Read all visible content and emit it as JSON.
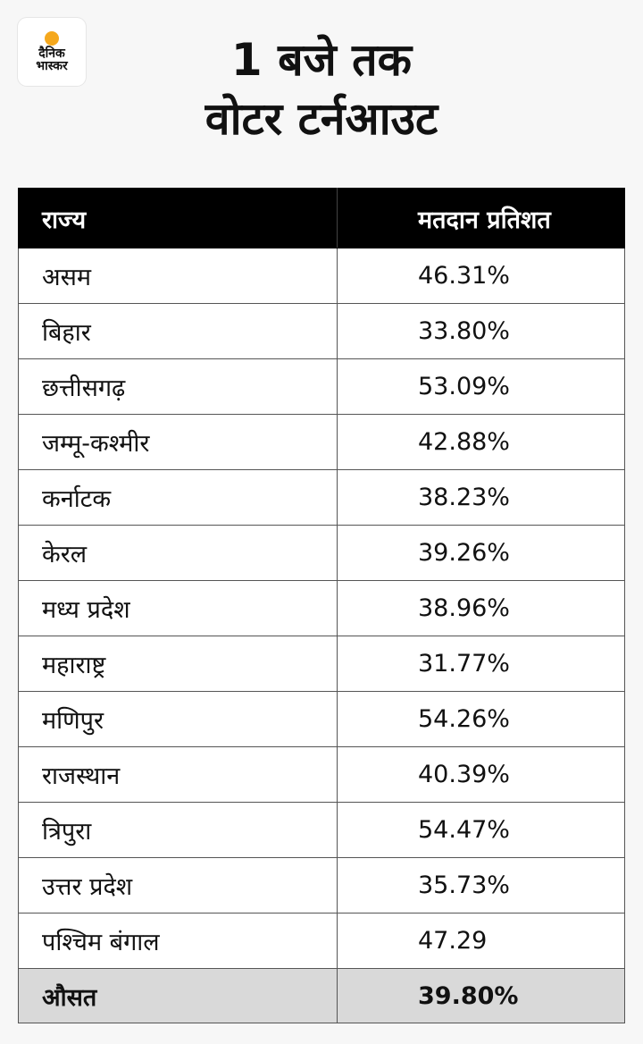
{
  "brand": {
    "line1": "दैनिक",
    "line2": "भास्कर",
    "dot_color": "#f5a81d"
  },
  "title": {
    "line1": "1 बजे तक",
    "line2": "वोटर टर्नआउट"
  },
  "table": {
    "headers": [
      "राज्य",
      "मतदान प्रतिशत"
    ],
    "rows": [
      {
        "state": "असम",
        "pct": "46.31%"
      },
      {
        "state": "बिहार",
        "pct": "33.80%"
      },
      {
        "state": "छत्तीसगढ़",
        "pct": "53.09%"
      },
      {
        "state": "जम्मू-कश्मीर",
        "pct": "42.88%"
      },
      {
        "state": "कर्नाटक",
        "pct": "38.23%"
      },
      {
        "state": "केरल",
        "pct": "39.26%"
      },
      {
        "state": "मध्य प्रदेश",
        "pct": "38.96%"
      },
      {
        "state": "महाराष्ट्र",
        "pct": "31.77%"
      },
      {
        "state": "मणिपुर",
        "pct": "54.26%"
      },
      {
        "state": "राजस्थान",
        "pct": "40.39%"
      },
      {
        "state": "त्रिपुरा",
        "pct": "54.47%"
      },
      {
        "state": "उत्तर प्रदेश",
        "pct": "35.73%"
      },
      {
        "state": "पश्चिम बंगाल",
        "pct": "47.29"
      }
    ],
    "average": {
      "label": "औसत",
      "pct": "39.80%"
    }
  },
  "colors": {
    "header_bg": "#000000",
    "average_bg": "#d9d9d9",
    "page_bg": "#f7f7f7"
  }
}
